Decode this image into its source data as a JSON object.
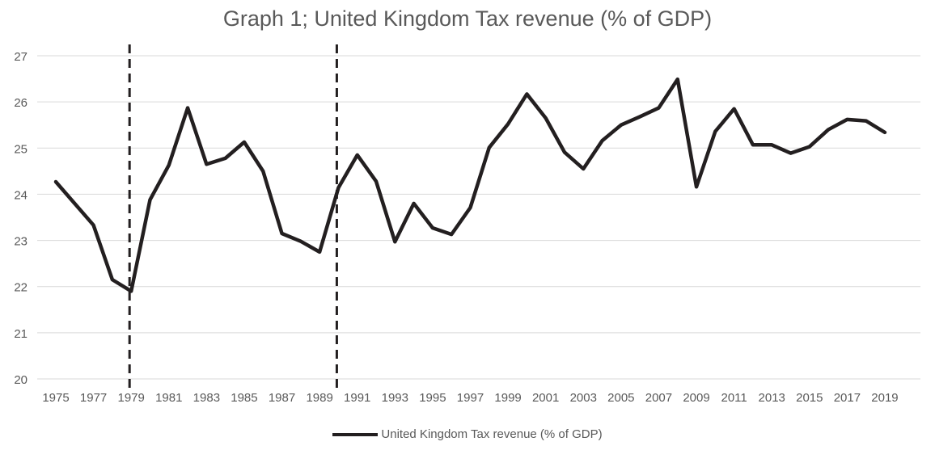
{
  "chart_data": {
    "type": "line",
    "title": "Graph 1; United Kingdom Tax revenue (% of GDP)",
    "xlabel": "",
    "ylabel": "",
    "ylim": [
      20,
      27
    ],
    "yticks": [
      20,
      21,
      22,
      23,
      24,
      25,
      26,
      27
    ],
    "grid": true,
    "legend_position": "bottom",
    "x": [
      1975,
      1976,
      1977,
      1978,
      1979,
      1980,
      1981,
      1982,
      1983,
      1984,
      1985,
      1986,
      1987,
      1988,
      1989,
      1990,
      1991,
      1992,
      1993,
      1994,
      1995,
      1996,
      1997,
      1998,
      1999,
      2000,
      2001,
      2002,
      2003,
      2004,
      2005,
      2006,
      2007,
      2008,
      2009,
      2010,
      2011,
      2012,
      2013,
      2014,
      2015,
      2016,
      2017,
      2018,
      2019
    ],
    "xtick_labels": [
      "1975",
      "1977",
      "1979",
      "1981",
      "1983",
      "1985",
      "1987",
      "1989",
      "1991",
      "1993",
      "1995",
      "1997",
      "1999",
      "2001",
      "2003",
      "2005",
      "2007",
      "2009",
      "2011",
      "2013",
      "2015",
      "2017",
      "2019"
    ],
    "series": [
      {
        "name": "United Kingdom Tax revenue (% of GDP)",
        "color": "#231f20",
        "values": [
          24.27,
          23.8,
          23.33,
          22.15,
          21.9,
          23.88,
          24.63,
          25.87,
          24.65,
          24.78,
          25.13,
          24.5,
          23.15,
          22.98,
          22.75,
          24.14,
          24.85,
          24.28,
          22.97,
          23.8,
          23.27,
          23.13,
          23.71,
          25.01,
          25.52,
          26.17,
          25.65,
          24.91,
          24.55,
          25.16,
          25.5,
          25.68,
          25.87,
          26.49,
          24.16,
          25.36,
          25.85,
          25.07,
          25.07,
          24.89,
          25.03,
          25.4,
          25.62,
          25.59,
          25.34
        ]
      }
    ],
    "reference_lines_x": [
      1979,
      1990
    ],
    "colors": {
      "line": "#231f20",
      "grid": "#d9d9d9",
      "text": "#595959"
    }
  }
}
